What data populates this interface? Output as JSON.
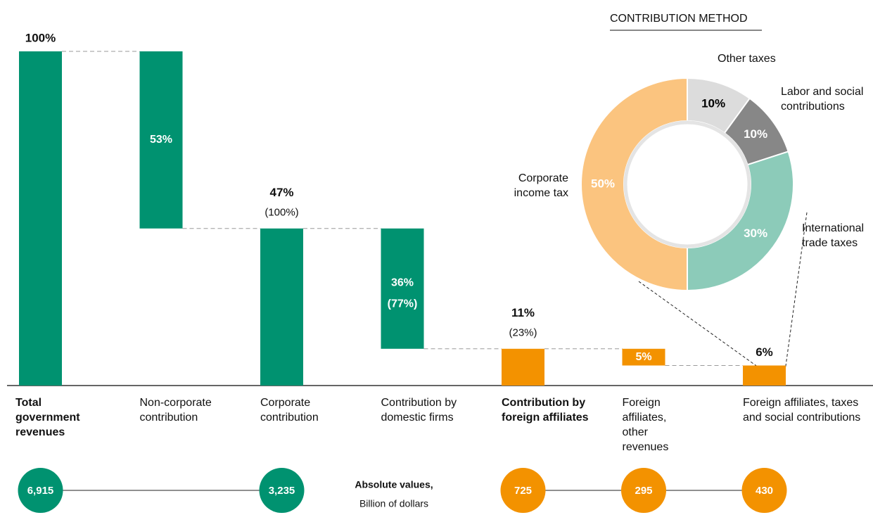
{
  "chart_data": [
    {
      "type": "waterfall",
      "categories": [
        "Total government revenues",
        "Non-corporate contribution",
        "Corporate contribution",
        "Contribution by domestic firms",
        "Contribution by foreign affiliates",
        "Foreign affiliates, other revenues",
        "Foreign affiliates, taxes and social contributions"
      ],
      "values": [
        100,
        53,
        47,
        36,
        11,
        5,
        6
      ],
      "value_labels": [
        "100%",
        "53%",
        "47%",
        "36%",
        "11%",
        "5%",
        "6%"
      ],
      "sub_labels": [
        null,
        null,
        "(100%)",
        "(77%)",
        "(23%)",
        null,
        null
      ],
      "measure": [
        "total",
        "decrease",
        "total",
        "decrease",
        "total",
        "decrease",
        "total"
      ],
      "colors": [
        "#009270",
        "#009270",
        "#009270",
        "#009270",
        "#f39200",
        "#f39200",
        "#f39200"
      ],
      "label_position": [
        "above",
        "inside",
        "above",
        "inside",
        "above",
        "inside",
        "above"
      ],
      "bold": [
        true,
        false,
        false,
        false,
        true,
        false,
        false
      ],
      "ylim": [
        0,
        100
      ]
    },
    {
      "type": "pie",
      "title": "CONTRIBUTION METHOD",
      "categories": [
        "Other taxes",
        "Labor and social contributions",
        "International trade taxes",
        "Corporate income tax"
      ],
      "values": [
        10,
        10,
        30,
        50
      ],
      "value_labels": [
        "10%",
        "10%",
        "30%",
        "50%"
      ],
      "colors": [
        "#dcdcdc",
        "#878787",
        "#8ccbb9",
        "#fbc47f"
      ],
      "label_colors": [
        "#000000",
        "#ffffff",
        "#ffffff",
        "#ffffff"
      ]
    }
  ],
  "absolute_values": {
    "title": "Absolute values,",
    "unit": "Billion of dollars",
    "values": [
      6915,
      null,
      3235,
      null,
      725,
      295,
      430
    ],
    "value_labels": [
      "6,915",
      null,
      "3,235",
      null,
      "725",
      "295",
      "430"
    ]
  }
}
